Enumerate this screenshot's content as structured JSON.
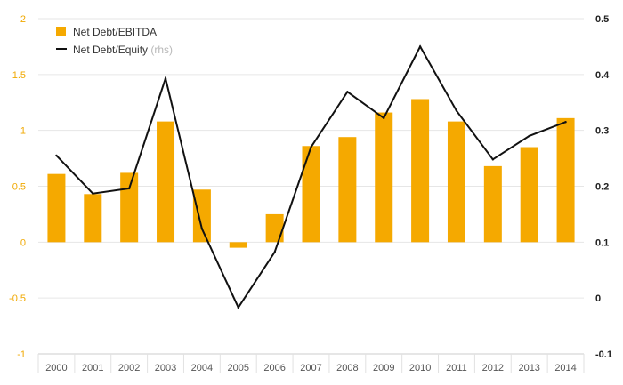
{
  "chart_data": {
    "type": "bar+line",
    "categories": [
      "2000",
      "2001",
      "2002",
      "2003",
      "2004",
      "2005",
      "2006",
      "2007",
      "2008",
      "2009",
      "2010",
      "2011",
      "2012",
      "2013",
      "2014"
    ],
    "series": [
      {
        "name": "Net Debt/EBITDA",
        "type": "bar",
        "axis": "left",
        "color": "#f5a900",
        "values": [
          0.61,
          0.43,
          0.62,
          1.08,
          0.47,
          -0.05,
          0.25,
          0.86,
          0.94,
          1.16,
          1.28,
          1.08,
          0.68,
          0.85,
          1.11
        ]
      },
      {
        "name": "Net Debt/Equity",
        "name_note": "(rhs)",
        "type": "line",
        "axis": "right",
        "color": "#111111",
        "values": [
          0.255,
          0.187,
          0.196,
          0.393,
          0.124,
          -0.017,
          0.082,
          0.27,
          0.369,
          0.322,
          0.45,
          0.335,
          0.248,
          0.29,
          0.315
        ]
      }
    ],
    "y_left": {
      "ylim": [
        -1,
        2
      ],
      "ticks": [
        "-1",
        "-0.5",
        "0",
        "0.5",
        "1",
        "1.5",
        "2"
      ]
    },
    "y_right": {
      "ylim": [
        -0.1,
        0.5
      ],
      "ticks": [
        "-0.1",
        "0",
        "0.1",
        "0.2",
        "0.3",
        "0.4",
        "0.5"
      ]
    },
    "grid": true,
    "legend_position": "top-left"
  }
}
